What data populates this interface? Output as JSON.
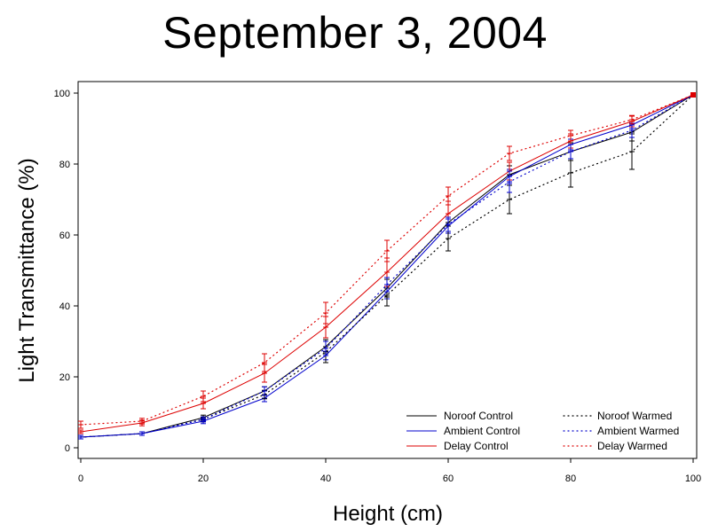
{
  "chart_data": {
    "type": "line",
    "title": "September 3, 2004",
    "xlabel": "Height (cm)",
    "ylabel": "Light Transmittance (%)",
    "xlim": [
      0,
      100
    ],
    "ylim": [
      0,
      100
    ],
    "x_ticks": [
      0,
      20,
      40,
      60,
      80,
      100
    ],
    "y_ticks": [
      0,
      20,
      40,
      60,
      80,
      100
    ],
    "x": [
      0,
      10,
      20,
      30,
      40,
      50,
      60,
      70,
      80,
      90,
      100
    ],
    "grid": false,
    "legend_position": "bottom-right",
    "series": [
      {
        "name": "Noroof Control",
        "color": "#000000",
        "style": "solid",
        "values": [
          3,
          4,
          8.5,
          16,
          28.5,
          45,
          63.5,
          77,
          83.5,
          89,
          99.5
        ],
        "errors": [
          0.5,
          0.5,
          0.7,
          1.2,
          2,
          2.5,
          2.5,
          2.5,
          2.5,
          2.5,
          0.3
        ]
      },
      {
        "name": "Ambient Control",
        "color": "#0000cc",
        "style": "solid",
        "values": [
          3,
          4,
          7.5,
          14,
          26,
          44,
          62.5,
          76.5,
          85.5,
          91,
          99.5
        ],
        "errors": [
          0.5,
          0.5,
          0.7,
          1,
          1.2,
          2,
          2,
          2,
          1.5,
          1,
          0.3
        ]
      },
      {
        "name": "Delay Control",
        "color": "#dd0000",
        "style": "solid",
        "values": [
          4.5,
          7,
          12.5,
          21,
          34,
          49.5,
          66,
          78,
          86.5,
          92,
          99.5
        ],
        "errors": [
          0.5,
          0.8,
          1.5,
          2.5,
          3,
          4,
          3.5,
          2.5,
          2,
          1.5,
          0.3
        ]
      },
      {
        "name": "Noroof Warmed",
        "color": "#000000",
        "style": "dotted",
        "values": [
          3,
          4,
          8,
          15,
          27,
          43,
          59,
          70,
          77.5,
          83.5,
          99.5
        ],
        "errors": [
          0.5,
          0.5,
          0.7,
          1.2,
          3,
          3,
          3.5,
          4,
          4,
          5,
          0.3
        ]
      },
      {
        "name": "Ambient Warmed",
        "color": "#0000cc",
        "style": "dotted",
        "values": [
          3,
          4,
          8,
          16,
          28,
          46,
          63,
          75,
          83.5,
          89.5,
          99.5
        ],
        "errors": [
          0.5,
          0.5,
          0.7,
          1.2,
          2,
          2,
          2,
          3,
          2,
          2,
          0.3
        ]
      },
      {
        "name": "Delay Warmed",
        "color": "#dd0000",
        "style": "dotted",
        "values": [
          6.5,
          7.5,
          14.5,
          24,
          38,
          55.5,
          71,
          83,
          88,
          92.5,
          99.5
        ],
        "errors": [
          1,
          0.8,
          1.5,
          2.5,
          3,
          3,
          2.5,
          2,
          1.5,
          1.2,
          0.3
        ]
      }
    ]
  }
}
